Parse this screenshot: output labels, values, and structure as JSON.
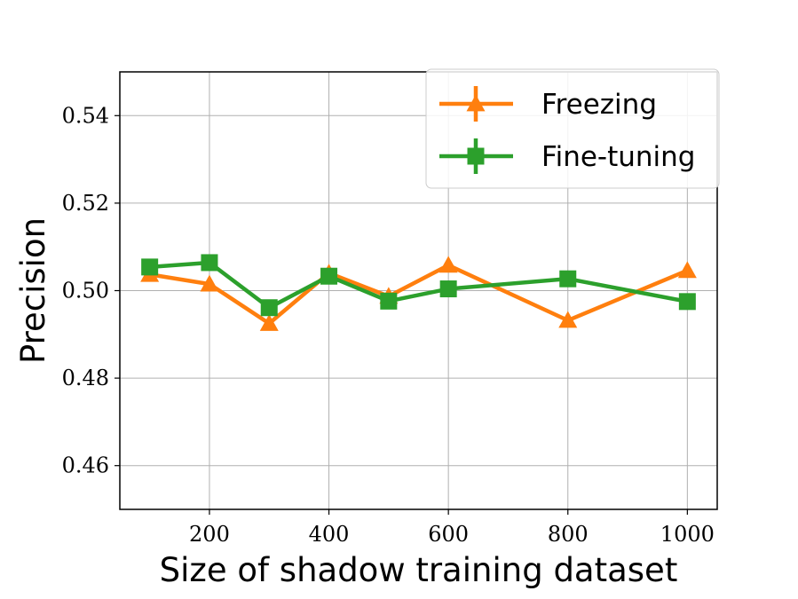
{
  "chart_data": {
    "type": "line",
    "title": "",
    "xlabel": "Size of shadow training dataset",
    "ylabel": "Precision",
    "xlim": [
      50,
      1050
    ],
    "ylim": [
      0.45,
      0.55
    ],
    "xticks": [
      200,
      400,
      600,
      800,
      1000
    ],
    "yticks": [
      0.46,
      0.48,
      0.5,
      0.52,
      0.54
    ],
    "xtick_labels": [
      "200",
      "400",
      "600",
      "800",
      "1000"
    ],
    "ytick_labels": [
      "0.46",
      "0.48",
      "0.50",
      "0.52",
      "0.54"
    ],
    "grid": true,
    "legend_position": "top-right",
    "x": [
      100,
      200,
      300,
      400,
      500,
      600,
      800,
      1000
    ],
    "series": [
      {
        "name": "Freezing",
        "color": "#ff7f0e",
        "marker": "triangle-up",
        "values": [
          0.5037,
          0.5015,
          0.4925,
          0.504,
          0.4987,
          0.5058,
          0.4932,
          0.5046
        ]
      },
      {
        "name": "Fine-tuning",
        "color": "#2ca02c",
        "marker": "square",
        "values": [
          0.5054,
          0.5064,
          0.4961,
          0.5033,
          0.4976,
          0.5004,
          0.5027,
          0.4975
        ]
      }
    ]
  }
}
